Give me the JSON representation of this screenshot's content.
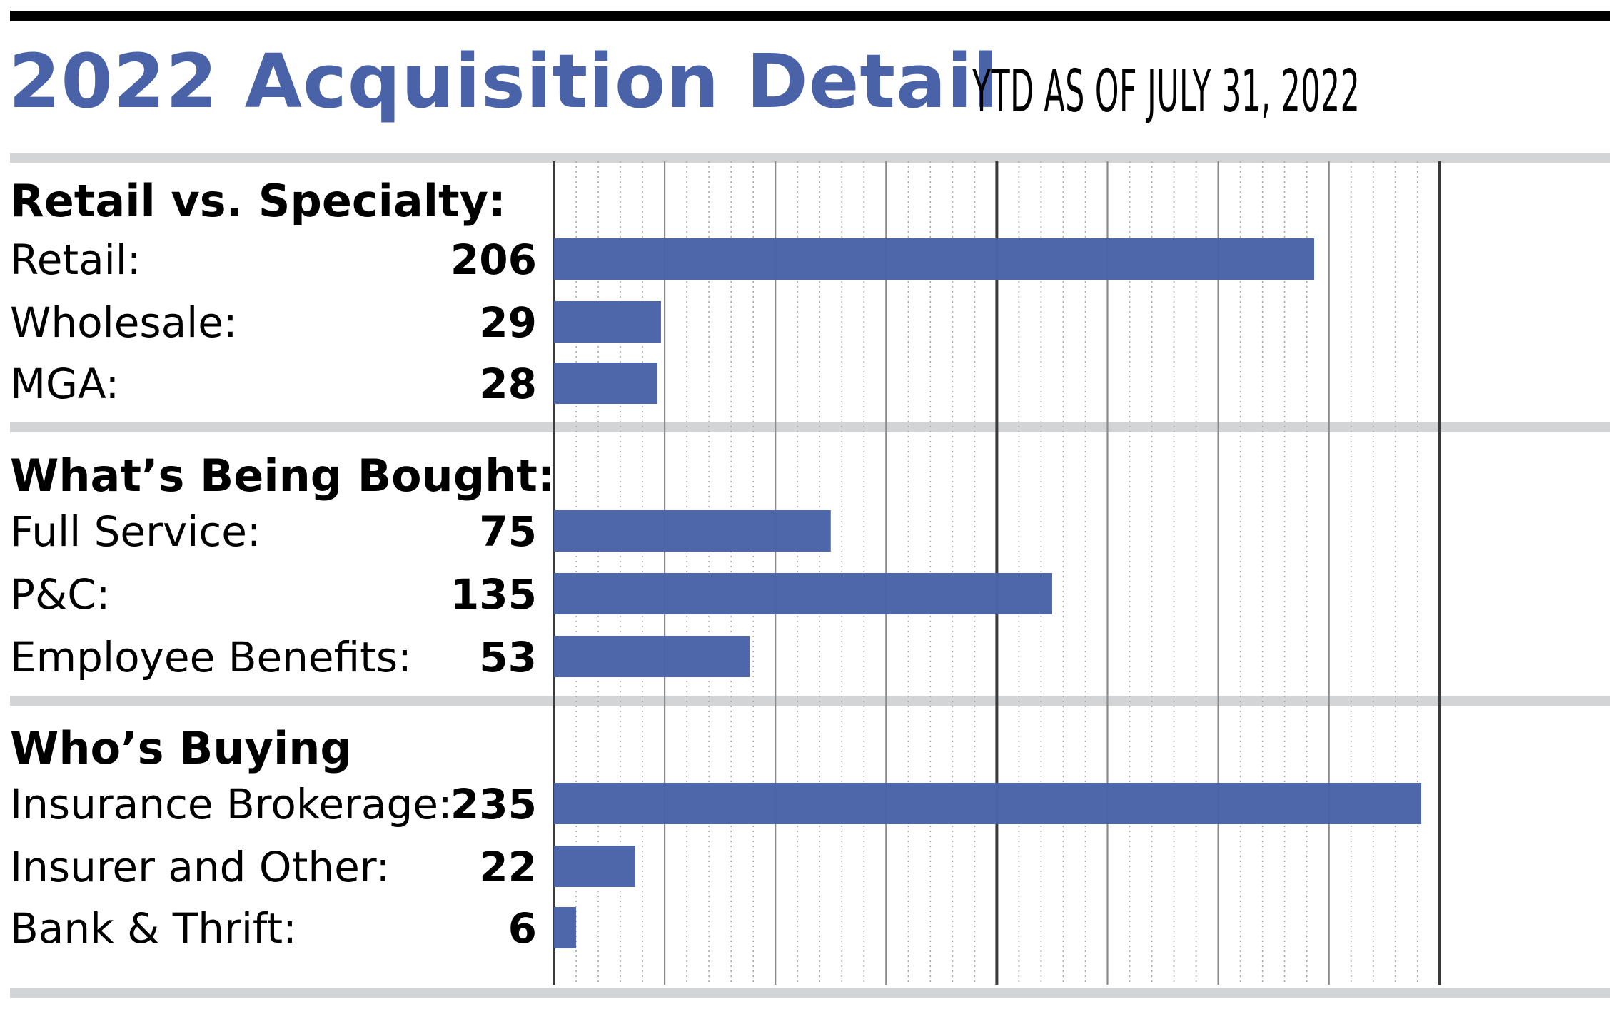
{
  "title": "2022 Acquisition Detail",
  "subtitle": "YTD AS OF JULY 31, 2022",
  "colors": {
    "bar": "#4a63a8",
    "band": "#d3d4d6",
    "title": "#4a63a8"
  },
  "chart_data": {
    "type": "bar",
    "orientation": "horizontal",
    "xlim": [
      0,
      240
    ],
    "grid": true,
    "groups": [
      {
        "heading": "Retail vs. Specialty:",
        "rows": [
          {
            "label": "Retail:",
            "value": 206,
            "display": "206"
          },
          {
            "label": "Wholesale:",
            "value": 29,
            "display": "29"
          },
          {
            "label": "MGA:",
            "value": 28,
            "display": "28"
          }
        ]
      },
      {
        "heading": "What’s Being Bought:",
        "rows": [
          {
            "label": "Full Service:",
            "value": 75,
            "display": "75"
          },
          {
            "label": "P&C:",
            "value": 135,
            "display": "135"
          },
          {
            "label": "Employee Benefits:",
            "value": 53,
            "display": "53"
          }
        ]
      },
      {
        "heading": "Who’s Buying",
        "rows": [
          {
            "label": "Insurance Brokerage:",
            "value": 235,
            "display": "235"
          },
          {
            "label": "Insurer and Other:",
            "value": 22,
            "display": "22"
          },
          {
            "label": "Bank & Thrift:",
            "value": 6,
            "display": "6"
          }
        ]
      }
    ]
  }
}
